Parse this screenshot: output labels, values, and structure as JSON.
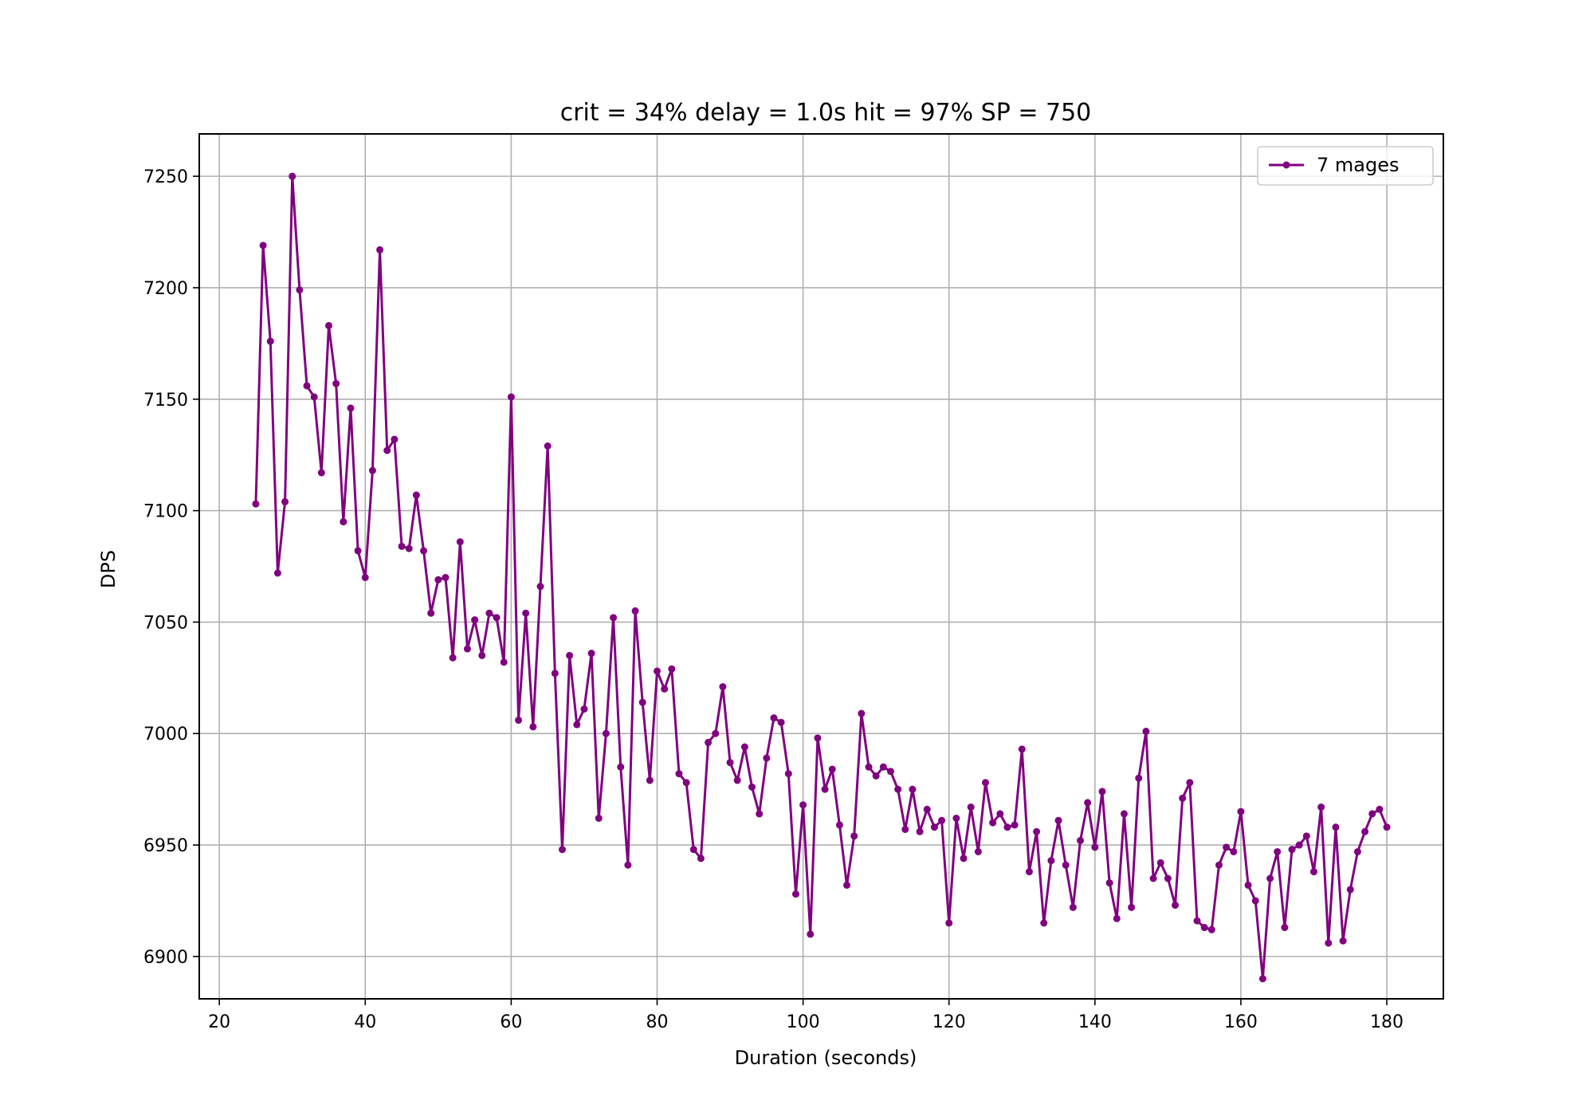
{
  "chart_data": {
    "type": "line",
    "title": "crit = 34% delay = 1.0s hit = 97% SP = 750",
    "xlabel": "Duration (seconds)",
    "ylabel": "DPS",
    "xlim": [
      17.25,
      187.75
    ],
    "ylim": [
      6881,
      7269
    ],
    "xticks": [
      20,
      40,
      60,
      80,
      100,
      120,
      140,
      160,
      180
    ],
    "yticks": [
      6900,
      6950,
      7000,
      7050,
      7100,
      7150,
      7200,
      7250
    ],
    "grid": true,
    "legend_position": "top-right",
    "series": [
      {
        "name": "7 mages",
        "color": "#800080",
        "marker": "circle",
        "x": [
          25,
          26,
          27,
          28,
          29,
          30,
          31,
          32,
          33,
          34,
          35,
          36,
          37,
          38,
          39,
          40,
          41,
          42,
          43,
          44,
          45,
          46,
          47,
          48,
          49,
          50,
          51,
          52,
          53,
          54,
          55,
          56,
          57,
          58,
          59,
          60,
          61,
          62,
          63,
          64,
          65,
          66,
          67,
          68,
          69,
          70,
          71,
          72,
          73,
          74,
          75,
          76,
          77,
          78,
          79,
          80,
          81,
          82,
          83,
          84,
          85,
          86,
          87,
          88,
          89,
          90,
          91,
          92,
          93,
          94,
          95,
          96,
          97,
          98,
          99,
          100,
          101,
          102,
          103,
          104,
          105,
          106,
          107,
          108,
          109,
          110,
          111,
          112,
          113,
          114,
          115,
          116,
          117,
          118,
          119,
          120,
          121,
          122,
          123,
          124,
          125,
          126,
          127,
          128,
          129,
          130,
          131,
          132,
          133,
          134,
          135,
          136,
          137,
          138,
          139,
          140,
          141,
          142,
          143,
          144,
          145,
          146,
          147,
          148,
          149,
          150,
          151,
          152,
          153,
          154,
          155,
          156,
          157,
          158,
          159,
          160,
          161,
          162,
          163,
          164,
          165,
          166,
          167,
          168,
          169,
          170,
          171,
          172,
          173,
          174,
          175,
          176,
          177,
          178,
          179,
          180
        ],
        "y": [
          7103,
          7219,
          7176,
          7072,
          7104,
          7250,
          7199,
          7156,
          7151,
          7117,
          7183,
          7157,
          7095,
          7146,
          7082,
          7070,
          7118,
          7217,
          7127,
          7132,
          7084,
          7083,
          7107,
          7082,
          7054,
          7069,
          7070,
          7034,
          7086,
          7038,
          7051,
          7035,
          7054,
          7052,
          7032,
          7151,
          7006,
          7054,
          7003,
          7066,
          7129,
          7027,
          6948,
          7035,
          7004,
          7011,
          7036,
          6962,
          7000,
          7052,
          6985,
          6941,
          7055,
          7014,
          6979,
          7028,
          7020,
          7029,
          6982,
          6978,
          6948,
          6944,
          6996,
          7000,
          7021,
          6987,
          6979,
          6994,
          6976,
          6964,
          6989,
          7007,
          7005,
          6982,
          6928,
          6968,
          6910,
          6998,
          6975,
          6984,
          6959,
          6932,
          6954,
          7009,
          6985,
          6981,
          6985,
          6983,
          6975,
          6957,
          6975,
          6956,
          6966,
          6958,
          6961,
          6915,
          6962,
          6944,
          6967,
          6947,
          6978,
          6960,
          6964,
          6958,
          6959,
          6993,
          6938,
          6956,
          6915,
          6943,
          6961,
          6941,
          6922,
          6952,
          6969,
          6949,
          6974,
          6933,
          6917,
          6964,
          6922,
          6980,
          7001,
          6935,
          6942,
          6935,
          6923,
          6971,
          6978,
          6916,
          6913,
          6912,
          6941,
          6949,
          6947,
          6965,
          6932,
          6925,
          6890,
          6935,
          6947,
          6913,
          6948,
          6950,
          6954,
          6938,
          6967,
          6906,
          6958,
          6907,
          6930,
          6947,
          6956,
          6964,
          6966,
          6958
        ]
      }
    ]
  }
}
